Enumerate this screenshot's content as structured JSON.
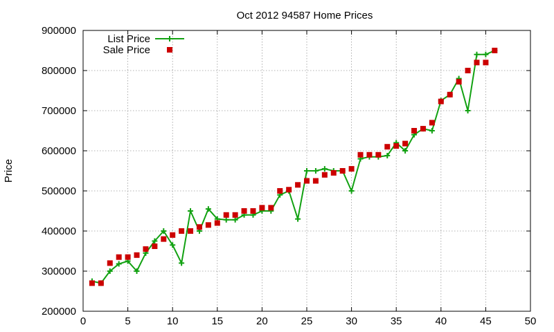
{
  "chart_data": {
    "type": "line",
    "title": "Oct 2012 94587 Home Prices",
    "xlabel": "",
    "ylabel": "Price",
    "xlim": [
      0,
      50
    ],
    "ylim": [
      200000,
      900000
    ],
    "x_ticks": [
      0,
      5,
      10,
      15,
      20,
      25,
      30,
      35,
      40,
      45,
      50
    ],
    "y_ticks": [
      200000,
      300000,
      400000,
      500000,
      600000,
      700000,
      800000,
      900000
    ],
    "grid": true,
    "legend_position": "top-left",
    "series": [
      {
        "name": "List Price",
        "style": "line-with-plus-markers",
        "color": "#11a111",
        "x": [
          1,
          2,
          3,
          4,
          5,
          6,
          7,
          8,
          9,
          10,
          11,
          12,
          13,
          14,
          15,
          16,
          17,
          18,
          19,
          20,
          21,
          22,
          23,
          24,
          25,
          26,
          27,
          28,
          29,
          30,
          31,
          32,
          33,
          34,
          35,
          36,
          37,
          38,
          39,
          40,
          41,
          42,
          43,
          44,
          45,
          46
        ],
        "values": [
          275000,
          270000,
          300000,
          318000,
          325000,
          300000,
          345000,
          375000,
          400000,
          365000,
          320000,
          450000,
          400000,
          455000,
          430000,
          428000,
          428000,
          440000,
          440000,
          450000,
          450000,
          490000,
          500000,
          430000,
          550000,
          550000,
          555000,
          550000,
          550000,
          500000,
          580000,
          585000,
          585000,
          588000,
          620000,
          600000,
          640000,
          655000,
          650000,
          725000,
          740000,
          780000,
          700000,
          840000,
          840000,
          850000
        ]
      },
      {
        "name": "Sale Price",
        "style": "square-markers",
        "color": "#cc0000",
        "x": [
          1,
          2,
          3,
          4,
          5,
          6,
          7,
          8,
          9,
          10,
          11,
          12,
          13,
          14,
          15,
          16,
          17,
          18,
          19,
          20,
          21,
          22,
          23,
          24,
          25,
          26,
          27,
          28,
          29,
          30,
          31,
          32,
          33,
          34,
          35,
          36,
          37,
          38,
          39,
          40,
          41,
          42,
          43,
          44,
          45,
          46
        ],
        "values": [
          270000,
          270000,
          320000,
          335000,
          335000,
          340000,
          355000,
          362000,
          380000,
          390000,
          400000,
          400000,
          410000,
          415000,
          420000,
          440000,
          440000,
          450000,
          450000,
          458000,
          458000,
          500000,
          503000,
          515000,
          525000,
          525000,
          540000,
          545000,
          550000,
          555000,
          590000,
          590000,
          590000,
          610000,
          612000,
          618000,
          650000,
          655000,
          670000,
          723000,
          740000,
          772000,
          800000,
          820000,
          820000,
          850000
        ]
      }
    ]
  }
}
